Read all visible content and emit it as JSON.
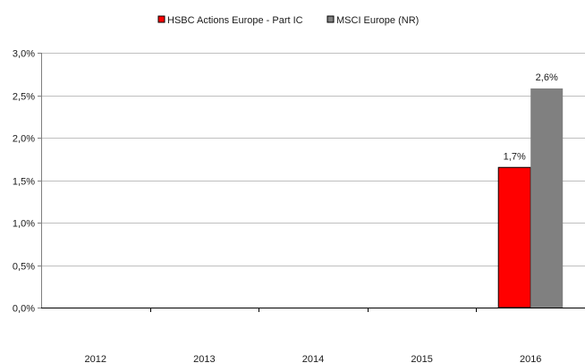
{
  "chart_data": {
    "type": "bar",
    "title": "",
    "xlabel": "",
    "ylabel": "",
    "categories": [
      "2012",
      "2013",
      "2014",
      "2015",
      "2016"
    ],
    "series": [
      {
        "name": "HSBC Actions Europe - Part IC",
        "color": "#ff0000",
        "values": [
          null,
          null,
          null,
          null,
          1.65
        ],
        "labels": [
          "",
          "",
          "",
          "",
          "1,7%"
        ]
      },
      {
        "name": "MSCI Europe (NR)",
        "color": "#808080",
        "values": [
          null,
          null,
          null,
          null,
          2.58
        ],
        "labels": [
          "",
          "",
          "",
          "",
          "2,6%"
        ]
      }
    ],
    "ylim": [
      0,
      3.0
    ],
    "yticks": [
      {
        "value": 0,
        "label": "0,0%"
      },
      {
        "value": 0.5,
        "label": "0,5%"
      },
      {
        "value": 1.0,
        "label": "1,0%"
      },
      {
        "value": 1.5,
        "label": "1,5%"
      },
      {
        "value": 2.0,
        "label": "2,0%"
      },
      {
        "value": 2.5,
        "label": "2,5%"
      },
      {
        "value": 3.0,
        "label": "3,0%"
      }
    ],
    "grid": true,
    "legend_position": "top-center"
  }
}
